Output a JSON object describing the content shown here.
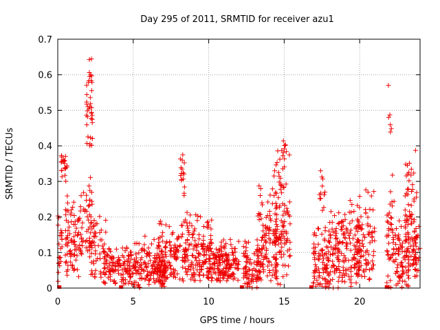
{
  "chart_data": {
    "type": "scatter",
    "title": "Day 295 of 2011, SRMTID for receiver azu1",
    "xlabel": "GPS time / hours",
    "ylabel": "SRMTID / TECUs",
    "xlim": [
      0,
      24
    ],
    "ylim": [
      0,
      0.7
    ],
    "xticks": [
      0,
      5,
      10,
      15,
      20
    ],
    "xtick_labels": [
      "0",
      "5",
      "10",
      "15",
      "20"
    ],
    "yticks": [
      0,
      0.1,
      0.2,
      0.3,
      0.4,
      0.5,
      0.6,
      0.7
    ],
    "ytick_labels": [
      "0",
      "0.1",
      "0.2",
      "0.3",
      "0.4",
      "0.5",
      "0.6",
      "0.7"
    ],
    "grid": true,
    "series_color": "#ee0000",
    "marker": "plus",
    "zero_markers_x": [
      0.1,
      4.2,
      12.2,
      16.8,
      21.8
    ],
    "clusters": [
      {
        "x": [
          0.0,
          0.3
        ],
        "ylo": 0.0,
        "yhi": 0.25,
        "n": 22,
        "seed": 11
      },
      {
        "x": [
          0.2,
          0.7
        ],
        "ylo": 0.3,
        "yhi": 0.42,
        "n": 20,
        "seed": 12
      },
      {
        "x": [
          0.5,
          1.5
        ],
        "ylo": 0.03,
        "yhi": 0.27,
        "n": 80,
        "seed": 13
      },
      {
        "x": [
          1.5,
          2.3
        ],
        "ylo": 0.08,
        "yhi": 0.32,
        "n": 55,
        "seed": 14
      },
      {
        "x": [
          1.9,
          2.3
        ],
        "ylo": 0.4,
        "yhi": 0.69,
        "n": 38,
        "seed": 15
      },
      {
        "x": [
          2.2,
          3.2
        ],
        "ylo": 0.03,
        "yhi": 0.22,
        "n": 55,
        "seed": 16
      },
      {
        "x": [
          3.0,
          5.0
        ],
        "ylo": 0.01,
        "yhi": 0.13,
        "n": 130,
        "seed": 17
      },
      {
        "x": [
          5.0,
          7.2
        ],
        "ylo": 0.0,
        "yhi": 0.15,
        "n": 160,
        "seed": 18
      },
      {
        "x": [
          6.5,
          8.5
        ],
        "ylo": 0.02,
        "yhi": 0.2,
        "n": 130,
        "seed": 19
      },
      {
        "x": [
          8.1,
          8.4
        ],
        "ylo": 0.26,
        "yhi": 0.4,
        "n": 16,
        "seed": 20
      },
      {
        "x": [
          8.4,
          10.2
        ],
        "ylo": 0.02,
        "yhi": 0.23,
        "n": 150,
        "seed": 21
      },
      {
        "x": [
          10.0,
          12.0
        ],
        "ylo": 0.02,
        "yhi": 0.15,
        "n": 160,
        "seed": 22
      },
      {
        "x": [
          12.3,
          13.5
        ],
        "ylo": 0.0,
        "yhi": 0.15,
        "n": 90,
        "seed": 23
      },
      {
        "x": [
          13.2,
          14.5
        ],
        "ylo": 0.02,
        "yhi": 0.3,
        "n": 110,
        "seed": 24
      },
      {
        "x": [
          14.3,
          15.4
        ],
        "ylo": 0.01,
        "yhi": 0.42,
        "n": 110,
        "seed": 25
      },
      {
        "x": [
          14.8,
          15.1
        ],
        "ylo": 0.35,
        "yhi": 0.46,
        "n": 8,
        "seed": 26
      },
      {
        "x": [
          16.9,
          18.0
        ],
        "ylo": 0.0,
        "yhi": 0.2,
        "n": 90,
        "seed": 27
      },
      {
        "x": [
          17.3,
          17.7
        ],
        "ylo": 0.2,
        "yhi": 0.35,
        "n": 12,
        "seed": 28
      },
      {
        "x": [
          18.0,
          20.0
        ],
        "ylo": 0.0,
        "yhi": 0.25,
        "n": 170,
        "seed": 29
      },
      {
        "x": [
          19.8,
          21.0
        ],
        "ylo": 0.02,
        "yhi": 0.3,
        "n": 90,
        "seed": 30
      },
      {
        "x": [
          21.8,
          22.3
        ],
        "ylo": 0.0,
        "yhi": 0.35,
        "n": 45,
        "seed": 31
      },
      {
        "x": [
          21.9,
          22.1
        ],
        "ylo": 0.41,
        "yhi": 0.63,
        "n": 6,
        "seed": 32
      },
      {
        "x": [
          22.3,
          23.3
        ],
        "ylo": 0.0,
        "yhi": 0.2,
        "n": 85,
        "seed": 33
      },
      {
        "x": [
          23.0,
          23.8
        ],
        "ylo": 0.05,
        "yhi": 0.43,
        "n": 70,
        "seed": 34
      },
      {
        "x": [
          23.5,
          24.0
        ],
        "ylo": 0.03,
        "yhi": 0.2,
        "n": 35,
        "seed": 35
      }
    ]
  }
}
